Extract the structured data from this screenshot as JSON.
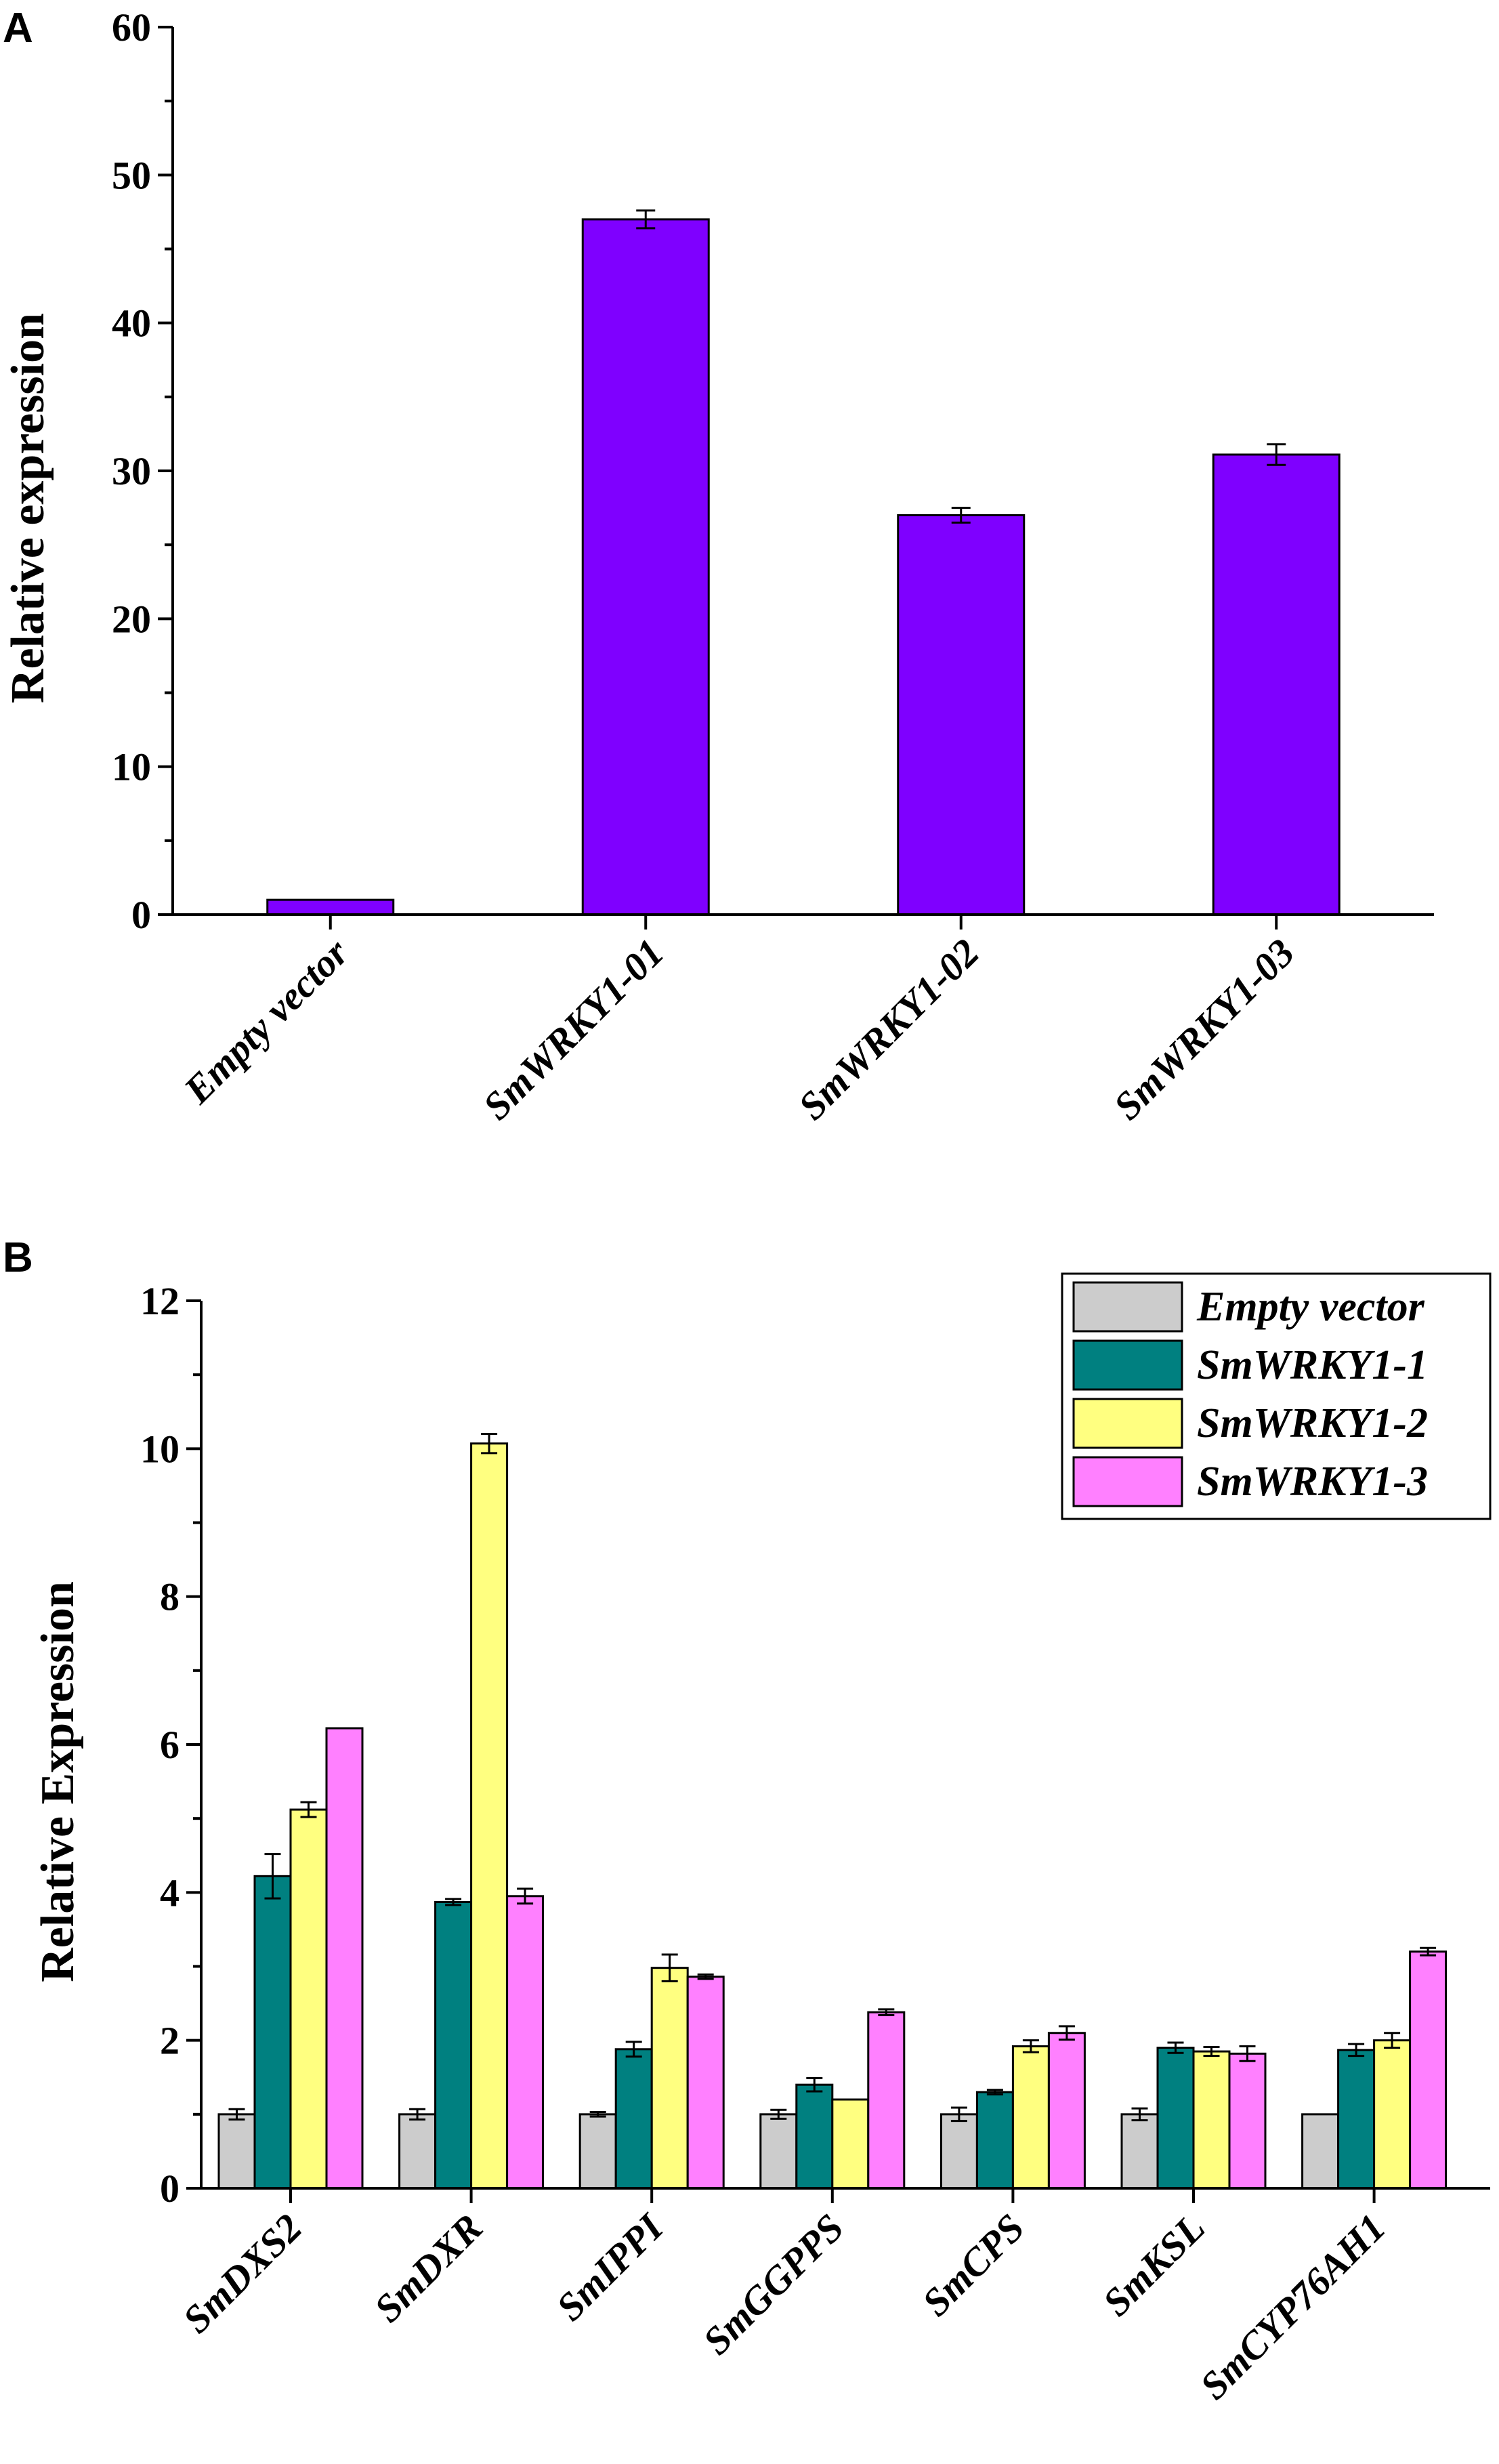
{
  "chart_data": [
    {
      "panel": "A",
      "type": "bar",
      "title": "",
      "xlabel": "",
      "ylabel": "Relative expression",
      "ylim": [
        0,
        60
      ],
      "yticks": [
        "0",
        "10",
        "20",
        "30",
        "40",
        "50",
        "60"
      ],
      "categories": [
        "Empty vector",
        "SmWRKY1-01",
        "SmWRKY1-02",
        "SmWRKY1-03"
      ],
      "values": [
        1.0,
        47.0,
        27.0,
        31.1
      ],
      "errors": [
        0.05,
        0.6,
        0.5,
        0.7
      ],
      "color": "#7F00FF"
    },
    {
      "panel": "B",
      "type": "bar",
      "title": "",
      "xlabel": "",
      "ylabel": "Relative Expression",
      "ylim": [
        0,
        12
      ],
      "yticks": [
        "0",
        "2",
        "4",
        "6",
        "8",
        "10",
        "12"
      ],
      "categories": [
        "SmDXS2",
        "SmDXR",
        "SmIPPI",
        "SmGGPPS",
        "SmCPS",
        "SmKSL",
        "SmCYP76AH1"
      ],
      "legend_position": "top-right",
      "series": [
        {
          "name": "Empty vector",
          "color": "#CCCCCC",
          "values": [
            1.0,
            1.0,
            1.0,
            1.0,
            1.0,
            1.0,
            1.0
          ],
          "errors": [
            0.07,
            0.07,
            0.03,
            0.06,
            0.09,
            0.08,
            0.01
          ]
        },
        {
          "name": "SmWRKY1-1",
          "color": "#008080",
          "values": [
            4.22,
            3.87,
            1.88,
            1.4,
            1.3,
            1.9,
            1.87
          ],
          "errors": [
            0.3,
            0.04,
            0.1,
            0.09,
            0.03,
            0.07,
            0.08
          ]
        },
        {
          "name": "SmWRKY1-2",
          "color": "#FFFF80",
          "values": [
            5.12,
            10.07,
            2.98,
            1.2,
            1.92,
            1.85,
            2.0
          ],
          "errors": [
            0.1,
            0.13,
            0.18,
            0.01,
            0.08,
            0.06,
            0.1
          ]
        },
        {
          "name": "SmWRKY1-3",
          "color": "#FF80FF",
          "values": [
            6.22,
            3.95,
            2.86,
            2.38,
            2.1,
            1.82,
            3.2
          ],
          "errors": [
            0.01,
            0.1,
            0.03,
            0.04,
            0.09,
            0.1,
            0.05
          ]
        }
      ]
    }
  ]
}
